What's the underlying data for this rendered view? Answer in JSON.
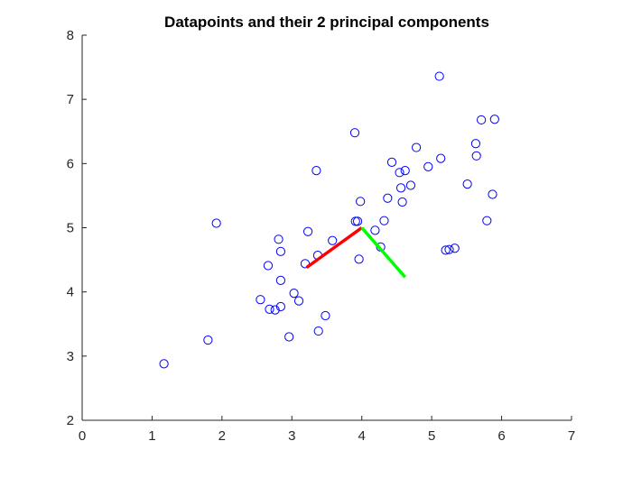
{
  "chart_data": {
    "type": "scatter",
    "title": "Datapoints and their 2 principal components",
    "xlabel": "",
    "ylabel": "",
    "xlim": [
      0,
      7
    ],
    "ylim": [
      2,
      8
    ],
    "xticks": [
      0,
      1,
      2,
      3,
      4,
      5,
      6,
      7
    ],
    "yticks": [
      2,
      3,
      4,
      5,
      6,
      7,
      8
    ],
    "grid": false,
    "legend": "none",
    "marker_color": "#0000ff",
    "points": [
      [
        1.17,
        2.88
      ],
      [
        1.8,
        3.25
      ],
      [
        1.92,
        5.07
      ],
      [
        2.55,
        3.88
      ],
      [
        2.66,
        4.41
      ],
      [
        2.68,
        3.73
      ],
      [
        2.76,
        3.72
      ],
      [
        2.81,
        4.82
      ],
      [
        2.84,
        4.63
      ],
      [
        2.84,
        3.77
      ],
      [
        2.84,
        4.18
      ],
      [
        2.96,
        3.3
      ],
      [
        3.03,
        3.98
      ],
      [
        3.1,
        3.86
      ],
      [
        3.19,
        4.44
      ],
      [
        3.23,
        4.94
      ],
      [
        3.35,
        5.89
      ],
      [
        3.37,
        4.57
      ],
      [
        3.38,
        3.39
      ],
      [
        3.48,
        3.63
      ],
      [
        3.58,
        4.8
      ],
      [
        3.9,
        6.48
      ],
      [
        3.91,
        5.1
      ],
      [
        3.94,
        5.1
      ],
      [
        3.96,
        4.51
      ],
      [
        3.98,
        5.41
      ],
      [
        4.19,
        4.96
      ],
      [
        4.27,
        4.7
      ],
      [
        4.32,
        5.11
      ],
      [
        4.37,
        5.46
      ],
      [
        4.43,
        6.02
      ],
      [
        4.54,
        5.86
      ],
      [
        4.56,
        5.62
      ],
      [
        4.58,
        5.4
      ],
      [
        4.62,
        5.89
      ],
      [
        4.7,
        5.66
      ],
      [
        4.78,
        6.25
      ],
      [
        4.95,
        5.95
      ],
      [
        5.11,
        7.36
      ],
      [
        5.13,
        6.08
      ],
      [
        5.2,
        4.65
      ],
      [
        5.25,
        4.66
      ],
      [
        5.33,
        4.68
      ],
      [
        5.51,
        5.68
      ],
      [
        5.63,
        6.31
      ],
      [
        5.64,
        6.12
      ],
      [
        5.71,
        6.68
      ],
      [
        5.79,
        5.11
      ],
      [
        5.87,
        5.52
      ],
      [
        5.9,
        6.69
      ]
    ],
    "components": [
      {
        "color": "#ff0000",
        "from": [
          4.0,
          5.0
        ],
        "to": [
          3.21,
          4.38
        ]
      },
      {
        "color": "#00ff00",
        "from": [
          4.0,
          5.0
        ],
        "to": [
          4.62,
          4.23
        ]
      }
    ]
  }
}
